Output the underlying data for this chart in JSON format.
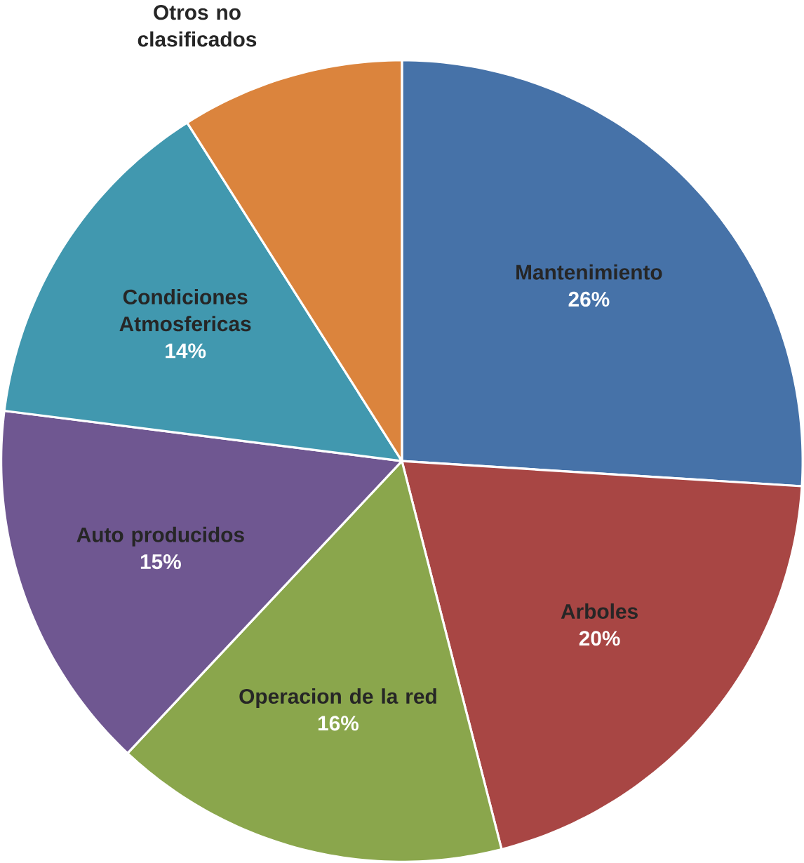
{
  "chart_data": {
    "type": "pie",
    "categories": [
      "Mantenimiento",
      "Arboles",
      "Operacion de la red",
      "Auto producidos",
      "Condiciones Atmosfericas",
      "Otros no clasificados"
    ],
    "values": [
      26,
      20,
      16,
      15,
      14,
      9
    ],
    "value_labels": [
      "26%",
      "20%",
      "16%",
      "15%",
      "14%",
      null
    ],
    "colors": [
      "#4672a8",
      "#a84644",
      "#8aa64c",
      "#6f5791",
      "#4198af",
      "#db843d"
    ]
  }
}
